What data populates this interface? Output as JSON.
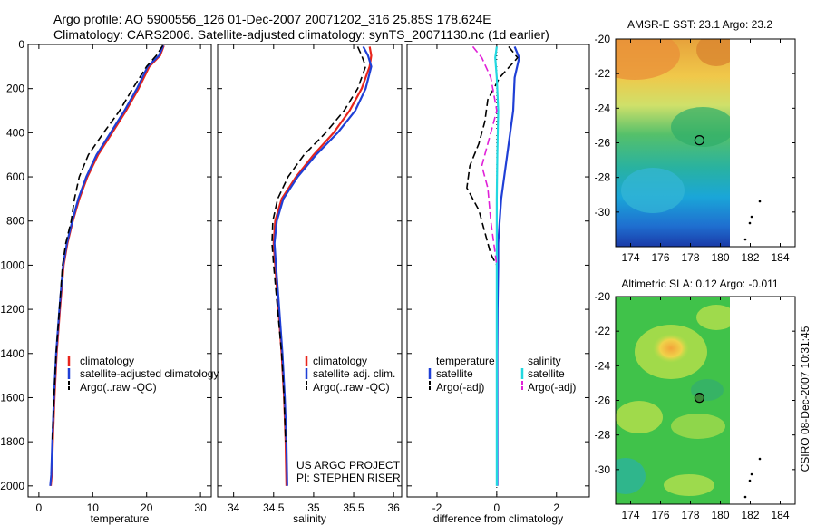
{
  "header": {
    "line1": "Argo profile: AO 5900556_126 01-Dec-2007 20071202_316 25.85S 178.624E",
    "line2": "Climatology: CARS2006. Satellite-adjusted climatology: synTS_20071130.nc (1d earlier)"
  },
  "credit": {
    "line1": "US ARGO PROJECT",
    "line2": "PI: STEPHEN RISER"
  },
  "timestamp": "CSIRO 08-Dec-2007 10:31:45",
  "colors": {
    "climatology": "#e8251c",
    "satellite": "#1f3fd6",
    "argo": "#000000",
    "satellite_salinity": "#22d8e0",
    "argo_salinity": "#e020d8"
  },
  "chart_data": [
    {
      "type": "line",
      "id": "temperature",
      "xlabel": "temperature",
      "ylabel": "",
      "xlim": [
        -2,
        32
      ],
      "ylim": [
        2050,
        0
      ],
      "xticks": [
        0,
        10,
        20,
        30
      ],
      "yticks": [
        0,
        200,
        400,
        600,
        800,
        1000,
        1200,
        1400,
        1600,
        1800,
        2000
      ],
      "legend": [
        "climatology",
        "satellite-adjusted climatology",
        "Argo(..raw -QC)"
      ],
      "series": [
        {
          "name": "climatology",
          "color": "#e8251c",
          "dash": "",
          "x": [
            23.2,
            22.5,
            20.5,
            18.5,
            16.2,
            13.6,
            11.0,
            9.0,
            7.5,
            6.3,
            5.3,
            4.6,
            3.9,
            3.3,
            2.9,
            2.6,
            2.4,
            2.2
          ],
          "y": [
            5,
            50,
            100,
            200,
            300,
            400,
            500,
            600,
            700,
            800,
            900,
            1000,
            1200,
            1400,
            1600,
            1800,
            1950,
            2000
          ]
        },
        {
          "name": "satellite-adjusted climatology",
          "color": "#1f3fd6",
          "dash": "",
          "x": [
            23.1,
            22.3,
            20.2,
            18.2,
            15.9,
            13.3,
            10.7,
            8.8,
            7.3,
            6.2,
            5.2,
            4.5,
            3.8,
            3.2,
            2.8,
            2.5,
            2.3,
            2.1
          ],
          "y": [
            5,
            50,
            100,
            200,
            300,
            400,
            500,
            600,
            700,
            800,
            900,
            1000,
            1200,
            1400,
            1600,
            1800,
            1950,
            2000
          ]
        },
        {
          "name": "Argo(..raw -QC)",
          "color": "#000000",
          "dash": "8 4",
          "x": [
            23.0,
            21.8,
            20.0,
            17.4,
            15.0,
            12.0,
            9.2,
            7.5,
            6.6,
            6.0,
            5.0,
            4.4,
            3.8,
            3.2,
            2.8,
            2.5
          ],
          "y": [
            5,
            50,
            100,
            200,
            300,
            400,
            500,
            600,
            700,
            800,
            900,
            1000,
            1200,
            1400,
            1600,
            1800
          ]
        }
      ]
    },
    {
      "type": "line",
      "id": "salinity",
      "xlabel": "salinity",
      "ylabel": "",
      "xlim": [
        33.8,
        36.1
      ],
      "ylim": [
        2050,
        0
      ],
      "xticks": [
        34,
        34.5,
        35,
        35.5,
        36
      ],
      "yticks": [],
      "legend": [
        "climatology",
        "satellite adj. clim.",
        "Argo(..raw -QC)"
      ],
      "series": [
        {
          "name": "climatology",
          "color": "#e8251c",
          "dash": "",
          "x": [
            35.7,
            35.72,
            35.7,
            35.6,
            35.45,
            35.25,
            35.0,
            34.78,
            34.6,
            34.52,
            34.5,
            34.52,
            34.56,
            34.6,
            34.63,
            34.65,
            34.66
          ],
          "y": [
            10,
            50,
            100,
            200,
            300,
            400,
            500,
            600,
            700,
            800,
            900,
            1000,
            1200,
            1400,
            1600,
            1800,
            2000
          ]
        },
        {
          "name": "satellite adj. clim.",
          "color": "#1f3fd6",
          "dash": "",
          "x": [
            35.62,
            35.68,
            35.72,
            35.65,
            35.52,
            35.3,
            35.03,
            34.8,
            34.62,
            34.54,
            34.51,
            34.53,
            34.57,
            34.61,
            34.64,
            34.66,
            34.67
          ],
          "y": [
            10,
            50,
            100,
            200,
            300,
            400,
            500,
            600,
            700,
            800,
            900,
            1000,
            1200,
            1400,
            1600,
            1800,
            2000
          ]
        },
        {
          "name": "Argo(..raw -QC)",
          "color": "#000000",
          "dash": "8 4",
          "x": [
            35.55,
            35.6,
            35.65,
            35.55,
            35.38,
            35.15,
            34.88,
            34.68,
            34.55,
            34.49,
            34.48,
            34.5,
            34.55,
            34.6,
            34.63,
            34.65
          ],
          "y": [
            10,
            50,
            100,
            200,
            300,
            400,
            500,
            600,
            700,
            800,
            900,
            1000,
            1200,
            1400,
            1600,
            1800
          ]
        }
      ]
    },
    {
      "type": "line",
      "id": "difference",
      "xlabel": "difference from climatology",
      "ylabel": "",
      "xlim": [
        -3,
        3.1
      ],
      "ylim": [
        2050,
        0
      ],
      "xticks": [
        -2,
        0,
        2
      ],
      "yticks": [],
      "legend": [
        "temperature",
        "satellite",
        "Argo(-adj)",
        "salinity",
        "satellite",
        "Argo(-adj)"
      ],
      "series": [
        {
          "name": "temperature satellite",
          "color": "#1f3fd6",
          "dash": "",
          "x": [
            0.6,
            0.75,
            0.6,
            0.55,
            0.45,
            0.35,
            0.25,
            0.15,
            0.1,
            0.05,
            0.05,
            0.03,
            0.02,
            0.02,
            0.02,
            0.02
          ],
          "y": [
            10,
            60,
            150,
            300,
            400,
            500,
            600,
            700,
            800,
            900,
            1000,
            1200,
            1400,
            1600,
            1800,
            2000
          ]
        },
        {
          "name": "temperature Argo(-adj)",
          "color": "#000000",
          "dash": "8 4",
          "x": [
            0.4,
            0.7,
            0.1,
            -0.3,
            -0.4,
            -0.6,
            -0.9,
            -1.0,
            -0.6,
            -0.4,
            -0.2,
            0.0
          ],
          "y": [
            10,
            60,
            150,
            250,
            350,
            450,
            550,
            650,
            750,
            850,
            950,
            1000
          ]
        },
        {
          "name": "salinity satellite",
          "color": "#22d8e0",
          "dash": "",
          "x": [
            0.0,
            -0.05,
            0.0,
            0.05,
            0.02,
            0.0,
            0.0,
            0.0,
            0.0,
            0.0,
            0.0,
            0.0
          ],
          "y": [
            10,
            60,
            150,
            300,
            500,
            700,
            900,
            1100,
            1400,
            1600,
            1800,
            2000
          ]
        },
        {
          "name": "salinity Argo(-adj)",
          "color": "#e020d8",
          "dash": "8 4",
          "x": [
            -0.8,
            -0.5,
            -0.2,
            0.0,
            -0.3,
            -0.5,
            -0.3,
            -0.2,
            -0.1,
            0.0
          ],
          "y": [
            10,
            60,
            150,
            300,
            450,
            550,
            650,
            800,
            900,
            1000
          ]
        }
      ]
    },
    {
      "type": "heatmap",
      "id": "sst-map",
      "title": "AMSR-E SST: 23.1 Argo: 23.2",
      "xlim": [
        173,
        185
      ],
      "ylim": [
        -32,
        -20
      ],
      "xticks": [
        174,
        176,
        178,
        180,
        182,
        184
      ],
      "yticks": [
        -20,
        -22,
        -24,
        -26,
        -28,
        -30
      ],
      "marker": {
        "lon": 178.6,
        "lat": -25.85
      }
    },
    {
      "type": "heatmap",
      "id": "sla-map",
      "title": "Altimetric SLA: 0.12 Argo: -0.011",
      "xlim": [
        173,
        185
      ],
      "ylim": [
        -32,
        -20
      ],
      "xticks": [
        174,
        176,
        178,
        180,
        182,
        184
      ],
      "yticks": [
        -20,
        -22,
        -24,
        -26,
        -28,
        -30
      ],
      "marker": {
        "lon": 178.6,
        "lat": -25.85
      }
    }
  ]
}
